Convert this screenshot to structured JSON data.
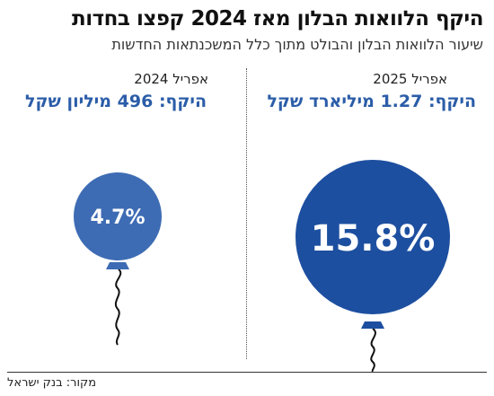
{
  "header": {
    "title": "היקף הלוואות הבלון מאז 2024 קפצו בחדות",
    "subtitle": "שיעור הלוואות הבלון והבולט מתוך כלל המשכנתאות החדשות"
  },
  "footer": {
    "source": "מקור: בנק ישראל"
  },
  "chart_data": {
    "type": "bubble",
    "categories": [
      "אפריל 2025",
      "אפריל 2024"
    ],
    "values": [
      15.8,
      4.7
    ],
    "value_labels": [
      "15.8%",
      "4.7%"
    ],
    "volume_labels": [
      "היקף: 1.27 מיליארד שקל",
      "היקף: 496 מיליון שקל"
    ],
    "unit": "%",
    "colors": [
      "#1d4fa0",
      "#3e6cb4"
    ]
  }
}
